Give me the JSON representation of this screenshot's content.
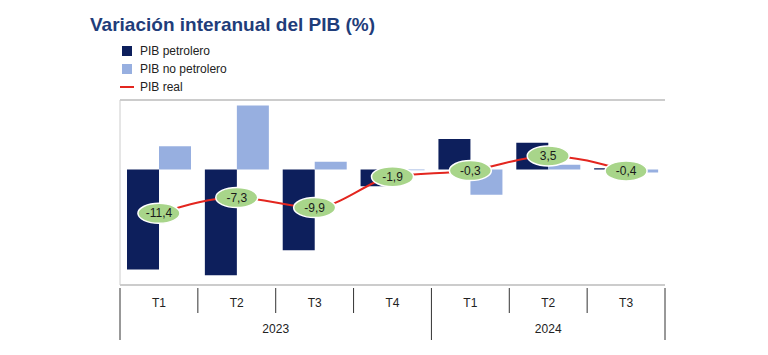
{
  "chart_data": {
    "type": "bar",
    "title": "Variación interanual del PIB (%)",
    "categories": [
      "T1",
      "T2",
      "T3",
      "T4",
      "T1",
      "T2",
      "T3"
    ],
    "x_groups": [
      "2023",
      "2023",
      "2023",
      "2023",
      "2024",
      "2024",
      "2024"
    ],
    "series": [
      {
        "name": "PIB petrolero",
        "color": "#0d1f5c",
        "type": "bar",
        "values": [
          -26,
          -27.5,
          -21,
          -4.4,
          7.9,
          6.9,
          0.3
        ]
      },
      {
        "name": "PIB no petrolero",
        "color": "#97afe0",
        "type": "bar",
        "values": [
          6,
          16.6,
          2,
          -0.2,
          -6.6,
          1.2,
          -0.8
        ]
      },
      {
        "name": "PIB real",
        "color": "#e3261f",
        "type": "line",
        "values": [
          -11.4,
          -7.3,
          -9.9,
          -1.9,
          -0.3,
          3.5,
          -0.4
        ],
        "value_labels": [
          "-11,4",
          "-7,3",
          "-9,9",
          "-1,9",
          "-0,3",
          "3,5",
          "-0,4"
        ],
        "data_labels": true
      }
    ],
    "ylim": [
      -30,
      18
    ],
    "yticks": [
      0
    ],
    "grid": true,
    "tick_labels": "x",
    "legend": "top-left"
  }
}
